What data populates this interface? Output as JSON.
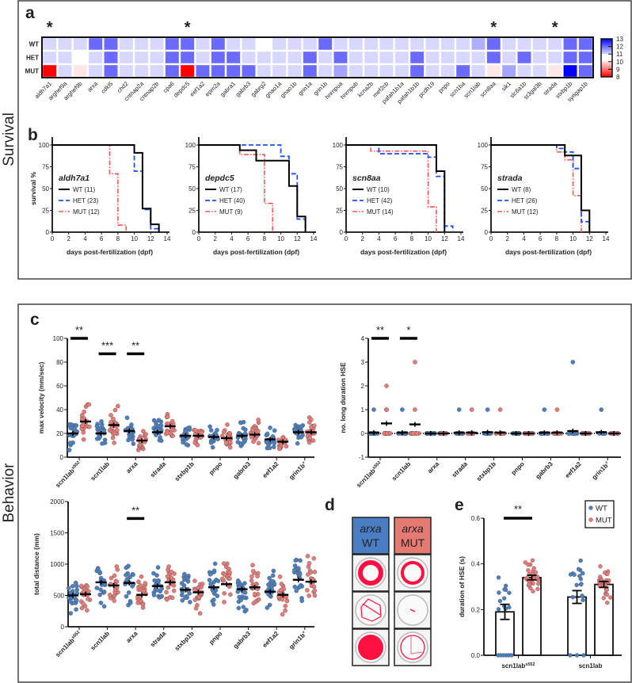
{
  "panel_labels": {
    "a": "a",
    "b": "b",
    "c": "c",
    "d": "d",
    "e": "e"
  },
  "section_labels": {
    "survival": "Survival",
    "behavior": "Behavior"
  },
  "chart_data": [
    {
      "type": "heatmap",
      "significance_mark": "*",
      "row_labels": [
        "WT",
        "HET",
        "MUT"
      ],
      "genes": [
        "aldh7a1",
        "arghef9a",
        "arghef9b",
        "arxa",
        "cdkl5",
        "chd2",
        "cntnap2a",
        "cntnap2b",
        "cpa6",
        "depdc5",
        "eef1a2",
        "epm2a",
        "gabra1",
        "gabrb3",
        "gabrg2",
        "gnao1a",
        "gnao1b",
        "grin1a",
        "grin1b",
        "hnrnpua",
        "hnrnpub",
        "kcna2b",
        "mef2cb",
        "pafah1b1a",
        "pafah1b1b",
        "pcdh19",
        "pnpo",
        "scn1ba",
        "scn1lab",
        "scn8aa",
        "sik1",
        "slc6a1b",
        "st3gal3b",
        "strada",
        "stxbp1b",
        "syngap1b"
      ],
      "values": [
        [
          11.4,
          11.4,
          11.4,
          12.5,
          12.5,
          11.4,
          11.4,
          11.4,
          12.5,
          12.5,
          11.4,
          12.5,
          11.4,
          11.4,
          11.0,
          11.4,
          11.4,
          11.4,
          12.5,
          11.4,
          11.4,
          11.4,
          11.4,
          11.4,
          11.4,
          11.4,
          11.4,
          11.4,
          11.8,
          12.5,
          11.4,
          11.4,
          11.4,
          11.4,
          12.5,
          12.5
        ],
        [
          11.4,
          11.4,
          11.0,
          11.4,
          12.5,
          11.4,
          11.4,
          11.4,
          12.5,
          12.5,
          11.4,
          12.5,
          12.5,
          11.4,
          11.4,
          11.4,
          11.4,
          12.5,
          11.4,
          12.5,
          11.4,
          11.4,
          11.4,
          11.4,
          12.5,
          11.4,
          11.4,
          11.4,
          11.4,
          12.5,
          11.4,
          12.5,
          11.4,
          11.4,
          12.5,
          12.5
        ],
        [
          8.2,
          11.4,
          10.6,
          11.4,
          12.5,
          11.4,
          11.4,
          11.4,
          12.5,
          8.2,
          12.5,
          12.5,
          12.5,
          12.5,
          11.4,
          11.4,
          11.4,
          12.5,
          11.4,
          11.9,
          11.4,
          11.4,
          11.4,
          11.4,
          12.5,
          11.4,
          11.4,
          12.5,
          11.4,
          10.6,
          11.9,
          11.4,
          11.4,
          10.6,
          13.0,
          12.5
        ]
      ],
      "significant_genes": [
        "aldh7a1",
        "depdc5",
        "scn8aa",
        "strada"
      ],
      "colorbar": {
        "min": 8,
        "max": 13,
        "ticks": [
          "13",
          "12",
          "11",
          "10",
          "9",
          "8"
        ],
        "low_color": "#ff0000",
        "mid_color": "#ffffff",
        "high_color": "#0000ff"
      }
    },
    {
      "type": "line",
      "subtype": "kaplan-meier",
      "title": "aldh7a1",
      "xlabel": "days post-fertilization (dpf)",
      "ylabel": "survival %",
      "xlim": [
        0,
        14
      ],
      "ylim": [
        0,
        100
      ],
      "xticks": [
        "0",
        "2",
        "4",
        "6",
        "8",
        "10",
        "12",
        "14"
      ],
      "yticks": [
        "0",
        "25",
        "50",
        "75",
        "100"
      ],
      "series": [
        {
          "name": "WT (11)",
          "group": "WT",
          "steps": [
            [
              0,
              100
            ],
            [
              10,
              91
            ],
            [
              11,
              27
            ],
            [
              12,
              9
            ],
            [
              13,
              0
            ]
          ]
        },
        {
          "name": "HET (23)",
          "group": "HET",
          "steps": [
            [
              0,
              100
            ],
            [
              10,
              70
            ],
            [
              11,
              26
            ],
            [
              12,
              4
            ],
            [
              13,
              0
            ]
          ]
        },
        {
          "name": "MUT (12)",
          "group": "MUT",
          "steps": [
            [
              0,
              100
            ],
            [
              7,
              67
            ],
            [
              8,
              8
            ],
            [
              9,
              0
            ]
          ]
        }
      ]
    },
    {
      "type": "line",
      "subtype": "kaplan-meier",
      "title": "depdc5",
      "xlabel": "days post-fertilization (dpf)",
      "ylabel": "",
      "xlim": [
        0,
        14
      ],
      "ylim": [
        0,
        100
      ],
      "xticks": [
        "0",
        "2",
        "4",
        "6",
        "8",
        "10",
        "12",
        "14"
      ],
      "yticks": [
        "0",
        "25",
        "50",
        "75",
        "100"
      ],
      "series": [
        {
          "name": "WT (17)",
          "group": "WT",
          "steps": [
            [
              0,
              100
            ],
            [
              5,
              94
            ],
            [
              7,
              82
            ],
            [
              11,
              53
            ],
            [
              12,
              18
            ],
            [
              13,
              0
            ]
          ]
        },
        {
          "name": "HET (40)",
          "group": "HET",
          "steps": [
            [
              0,
              100
            ],
            [
              10,
              87
            ],
            [
              11,
              67
            ],
            [
              12,
              15
            ],
            [
              13,
              0
            ]
          ]
        },
        {
          "name": "MUT (9)",
          "group": "MUT",
          "steps": [
            [
              0,
              100
            ],
            [
              5,
              89
            ],
            [
              8,
              33
            ],
            [
              9,
              0
            ]
          ]
        }
      ]
    },
    {
      "type": "line",
      "subtype": "kaplan-meier",
      "title": "scn8aa",
      "xlabel": "days post-fertilization (dpf)",
      "ylabel": "",
      "xlim": [
        0,
        14
      ],
      "ylim": [
        0,
        100
      ],
      "xticks": [
        "0",
        "2",
        "4",
        "6",
        "8",
        "10",
        "12",
        "14"
      ],
      "yticks": [
        "0",
        "25",
        "50",
        "75",
        "100"
      ],
      "series": [
        {
          "name": "WT (10)",
          "group": "WT",
          "steps": [
            [
              0,
              100
            ],
            [
              11,
              70
            ],
            [
              12,
              0
            ]
          ]
        },
        {
          "name": "HET (42)",
          "group": "HET",
          "steps": [
            [
              0,
              100
            ],
            [
              4,
              90
            ],
            [
              10,
              86
            ],
            [
              11,
              64
            ],
            [
              12,
              7
            ],
            [
              13,
              0
            ]
          ]
        },
        {
          "name": "MUT (14)",
          "group": "MUT",
          "steps": [
            [
              0,
              100
            ],
            [
              3,
              93
            ],
            [
              10,
              29
            ],
            [
              11,
              0
            ]
          ]
        }
      ]
    },
    {
      "type": "line",
      "subtype": "kaplan-meier",
      "title": "strada",
      "xlabel": "days post-fertilization (dpf)",
      "ylabel": "",
      "xlim": [
        0,
        14
      ],
      "ylim": [
        0,
        100
      ],
      "xticks": [
        "0",
        "2",
        "4",
        "6",
        "8",
        "10",
        "12",
        "14"
      ],
      "yticks": [
        "0",
        "25",
        "50",
        "75",
        "100"
      ],
      "series": [
        {
          "name": "WT (8)",
          "group": "WT",
          "steps": [
            [
              0,
              100
            ],
            [
              9,
              88
            ],
            [
              11,
              25
            ],
            [
              12,
              0
            ]
          ]
        },
        {
          "name": "HET (26)",
          "group": "HET",
          "steps": [
            [
              0,
              100
            ],
            [
              8,
              96
            ],
            [
              9,
              92
            ],
            [
              10,
              73
            ],
            [
              11,
              12
            ],
            [
              12,
              0
            ]
          ]
        },
        {
          "name": "MUT (12)",
          "group": "MUT",
          "steps": [
            [
              0,
              100
            ],
            [
              8,
              92
            ],
            [
              9,
              83
            ],
            [
              10,
              42
            ],
            [
              11,
              0
            ]
          ]
        }
      ]
    },
    {
      "type": "scatter",
      "subtype": "dot-plot mean±SEM",
      "ylabel": "max velocity (mm/sec)",
      "ylim": [
        0,
        100
      ],
      "yticks": [
        "0",
        "20",
        "40",
        "60",
        "80",
        "100"
      ],
      "categories": [
        {
          "name": "scn1lab",
          "sup": "s552"
        },
        {
          "name": "scn1lab",
          "sup": ""
        },
        {
          "name": "arxa",
          "sup": ""
        },
        {
          "name": "strada",
          "sup": ""
        },
        {
          "name": "stxbp1b",
          "sup": ""
        },
        {
          "name": "pnpo",
          "sup": ""
        },
        {
          "name": "gabrb3",
          "sup": ""
        },
        {
          "name": "eef1a2",
          "sup": ""
        },
        {
          "name": "grin1b",
          "sup": "+"
        }
      ],
      "series": [
        {
          "group": "WT",
          "means": [
            20,
            20,
            22,
            21,
            18,
            17,
            18,
            15,
            21
          ]
        },
        {
          "group": "MUT",
          "means": [
            30,
            27,
            14,
            26,
            18,
            16,
            19,
            13,
            21
          ]
        }
      ],
      "significance": [
        {
          "category": 0,
          "label": "**",
          "y": 100
        },
        {
          "category": 1,
          "label": "***",
          "y": 87
        },
        {
          "category": 2,
          "label": "**",
          "y": 87
        }
      ]
    },
    {
      "type": "scatter",
      "subtype": "dot-plot mean±SEM",
      "ylabel": "no. long duration HSE",
      "ylim": [
        -1,
        4
      ],
      "yticks": [
        "-1",
        "0",
        "1",
        "2",
        "3",
        "4"
      ],
      "categories": [
        {
          "name": "scn1lab",
          "sup": "s552"
        },
        {
          "name": "scn1lab",
          "sup": ""
        },
        {
          "name": "arxa",
          "sup": ""
        },
        {
          "name": "strada",
          "sup": ""
        },
        {
          "name": "stxbp1b",
          "sup": ""
        },
        {
          "name": "pnpo",
          "sup": ""
        },
        {
          "name": "gabrb3",
          "sup": ""
        },
        {
          "name": "eef1a2",
          "sup": ""
        },
        {
          "name": "grin1b",
          "sup": "+"
        }
      ],
      "series": [
        {
          "group": "WT",
          "means": [
            0.03,
            0.03,
            0,
            0.03,
            0.05,
            0,
            0.03,
            0.1,
            0.05
          ],
          "nonzero_values": [
            [
              1
            ],
            [
              1
            ],
            [],
            [
              1
            ],
            [
              1
            ],
            [],
            [
              1
            ],
            [
              3
            ],
            [
              1
            ]
          ]
        },
        {
          "group": "MUT",
          "means": [
            0.42,
            0.38,
            0,
            0.03,
            0.03,
            0,
            0.03,
            0,
            0
          ],
          "nonzero_values": [
            [
              1,
              1,
              1,
              2
            ],
            [
              1,
              3
            ],
            [],
            [
              1
            ],
            [
              1
            ],
            [],
            [
              1
            ],
            [],
            []
          ]
        }
      ],
      "reference_line": 0,
      "significance": [
        {
          "category": 0,
          "label": "**",
          "y": 4
        },
        {
          "category": 1,
          "label": "*",
          "y": 4
        }
      ]
    },
    {
      "type": "scatter",
      "subtype": "dot-plot mean±SEM",
      "ylabel": "total distance (mm)",
      "ylim": [
        0,
        2000
      ],
      "yticks": [
        "0",
        "500",
        "1000",
        "1500",
        "2000"
      ],
      "categories": [
        {
          "name": "scn1lab",
          "sup": "s552"
        },
        {
          "name": "scn1lab",
          "sup": ""
        },
        {
          "name": "arxa",
          "sup": ""
        },
        {
          "name": "strada",
          "sup": ""
        },
        {
          "name": "stxbp1b",
          "sup": ""
        },
        {
          "name": "pnpo",
          "sup": ""
        },
        {
          "name": "gabrb3",
          "sup": ""
        },
        {
          "name": "eef1a2",
          "sup": ""
        },
        {
          "name": "grin1b",
          "sup": "+"
        }
      ],
      "series": [
        {
          "group": "WT",
          "means": [
            500,
            710,
            700,
            650,
            590,
            630,
            600,
            560,
            750
          ]
        },
        {
          "group": "MUT",
          "means": [
            520,
            660,
            510,
            710,
            550,
            680,
            630,
            510,
            720
          ]
        }
      ],
      "significance": [
        {
          "category": 2,
          "label": "**",
          "y": 1730
        }
      ]
    },
    {
      "type": "bar",
      "subtype": "bar with points mean±SEM",
      "ylabel": "duration of HSE (s)",
      "ylim": [
        0,
        0.6
      ],
      "yticks": [
        "0.0",
        "0.2",
        "0.4",
        "0.6"
      ],
      "categories": [
        {
          "name": "scn1lab",
          "sup": "s552"
        },
        {
          "name": "scn1lab",
          "sup": ""
        }
      ],
      "series": [
        {
          "name": "WT",
          "group": "WT",
          "values": [
            0.19,
            0.255
          ],
          "sem": [
            0.033,
            0.028
          ]
        },
        {
          "name": "MUT",
          "group": "MUT",
          "values": [
            0.34,
            0.31
          ],
          "sem": [
            0.01,
            0.013
          ]
        }
      ],
      "legend": "top-right",
      "significance": [
        {
          "category": 0,
          "label": "**",
          "y": 0.6
        }
      ]
    }
  ],
  "tracking_images": {
    "wt": {
      "gene": "arxa",
      "genotype": "WT",
      "color": "#4a7dc1"
    },
    "mut": {
      "gene": "arxa",
      "genotype": "MUT",
      "color": "#e57a73"
    }
  },
  "colors": {
    "WT": "#4a7fc0",
    "HET": "#1f4fff",
    "MUT": "#ff5555",
    "WT_line": "#000000",
    "MUT_point": "#e87b78",
    "track": "#ff1040"
  }
}
